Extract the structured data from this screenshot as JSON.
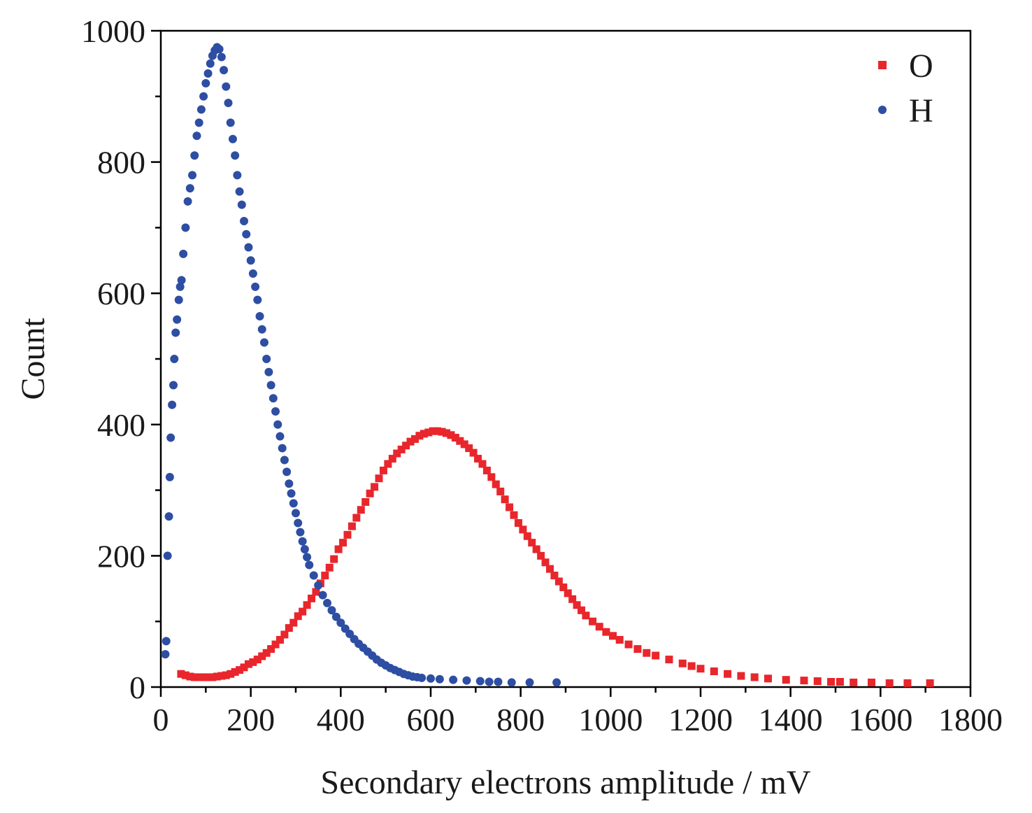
{
  "chart_data": {
    "type": "scatter",
    "title": "",
    "xlabel": "Secondary electrons amplitude / mV",
    "ylabel": "Count",
    "xlim": [
      0,
      1800
    ],
    "ylim": [
      0,
      1000
    ],
    "xticks": [
      0,
      200,
      400,
      600,
      800,
      1000,
      1200,
      1400,
      1600,
      1800
    ],
    "yticks": [
      0,
      200,
      400,
      600,
      800,
      1000
    ],
    "xtick_labels": [
      "0",
      "200",
      "400",
      "600",
      "800",
      "1000",
      "1200",
      "1400",
      "1600",
      "1800"
    ],
    "ytick_labels": [
      "0",
      "200",
      "400",
      "600",
      "800",
      "1000"
    ],
    "grid": false,
    "legend_position": "top-right",
    "series": [
      {
        "name": "O",
        "marker": "square",
        "color": "#e8262c",
        "x": [
          45,
          55,
          65,
          75,
          85,
          95,
          105,
          115,
          125,
          135,
          145,
          155,
          165,
          175,
          185,
          195,
          205,
          215,
          225,
          235,
          245,
          255,
          265,
          275,
          285,
          295,
          305,
          315,
          325,
          335,
          345,
          355,
          365,
          375,
          385,
          395,
          405,
          415,
          425,
          435,
          445,
          455,
          465,
          475,
          485,
          495,
          505,
          515,
          525,
          535,
          545,
          555,
          565,
          575,
          585,
          595,
          605,
          615,
          625,
          635,
          645,
          655,
          665,
          675,
          685,
          695,
          705,
          715,
          725,
          735,
          745,
          755,
          765,
          775,
          785,
          795,
          805,
          815,
          825,
          835,
          845,
          855,
          865,
          875,
          885,
          895,
          905,
          915,
          925,
          935,
          945,
          960,
          975,
          990,
          1005,
          1020,
          1040,
          1060,
          1080,
          1100,
          1130,
          1160,
          1180,
          1200,
          1230,
          1260,
          1290,
          1320,
          1350,
          1390,
          1430,
          1460,
          1490,
          1510,
          1540,
          1580,
          1620,
          1660,
          1710
        ],
        "y": [
          20,
          18,
          16,
          15,
          15,
          15,
          15,
          15,
          16,
          17,
          18,
          20,
          23,
          26,
          30,
          35,
          38,
          42,
          47,
          52,
          58,
          65,
          72,
          80,
          90,
          98,
          108,
          115,
          125,
          135,
          145,
          158,
          170,
          182,
          195,
          210,
          220,
          232,
          245,
          258,
          270,
          282,
          295,
          305,
          318,
          330,
          340,
          348,
          356,
          362,
          368,
          374,
          378,
          383,
          386,
          388,
          390,
          390,
          389,
          387,
          384,
          380,
          375,
          370,
          364,
          357,
          348,
          340,
          330,
          320,
          309,
          298,
          286,
          274,
          262,
          250,
          240,
          230,
          220,
          210,
          200,
          190,
          180,
          170,
          161,
          152,
          143,
          134,
          125,
          117,
          109,
          100,
          92,
          84,
          78,
          72,
          65,
          58,
          52,
          48,
          42,
          36,
          32,
          28,
          24,
          20,
          17,
          15,
          13,
          11,
          10,
          9,
          8,
          8,
          7,
          7,
          6,
          6,
          6
        ]
      },
      {
        "name": "H",
        "marker": "circle",
        "color": "#2e4ea3",
        "x": [
          10,
          12,
          15,
          18,
          20,
          22,
          25,
          28,
          30,
          33,
          36,
          40,
          43,
          46,
          50,
          55,
          60,
          65,
          70,
          75,
          80,
          85,
          90,
          95,
          100,
          105,
          110,
          115,
          120,
          125,
          130,
          135,
          140,
          145,
          150,
          155,
          160,
          165,
          170,
          175,
          180,
          185,
          190,
          195,
          200,
          205,
          210,
          215,
          220,
          225,
          230,
          235,
          240,
          245,
          250,
          255,
          260,
          265,
          270,
          275,
          280,
          285,
          290,
          295,
          300,
          305,
          310,
          315,
          320,
          325,
          330,
          340,
          350,
          360,
          370,
          380,
          390,
          400,
          410,
          420,
          430,
          440,
          450,
          460,
          470,
          480,
          490,
          500,
          510,
          520,
          530,
          540,
          550,
          560,
          570,
          580,
          600,
          620,
          650,
          680,
          710,
          730,
          750,
          780,
          820,
          880
        ],
        "y": [
          50,
          70,
          200,
          260,
          320,
          380,
          430,
          460,
          500,
          540,
          560,
          590,
          610,
          620,
          660,
          700,
          740,
          760,
          780,
          810,
          840,
          860,
          880,
          900,
          920,
          935,
          950,
          962,
          970,
          975,
          972,
          960,
          940,
          915,
          890,
          860,
          835,
          810,
          780,
          755,
          735,
          710,
          690,
          670,
          650,
          630,
          610,
          590,
          565,
          545,
          525,
          500,
          480,
          460,
          440,
          420,
          400,
          382,
          364,
          346,
          328,
          310,
          295,
          280,
          265,
          250,
          236,
          222,
          210,
          198,
          186,
          170,
          155,
          140,
          128,
          117,
          107,
          98,
          89,
          81,
          73,
          66,
          60,
          54,
          48,
          42,
          37,
          33,
          29,
          26,
          23,
          20,
          18,
          16,
          15,
          14,
          13,
          12,
          11,
          10,
          9,
          8,
          8,
          7,
          7,
          7
        ]
      }
    ]
  }
}
